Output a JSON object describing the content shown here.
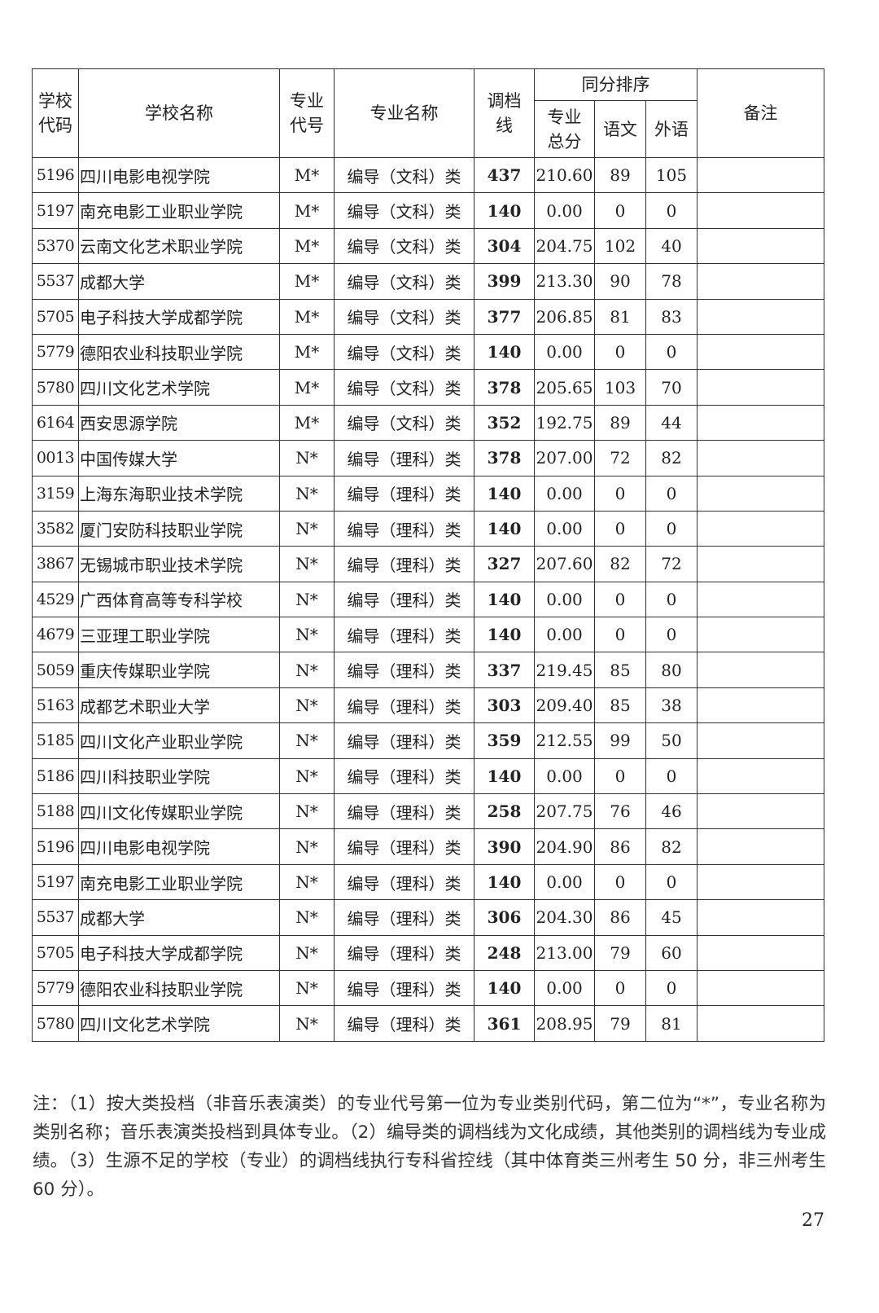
{
  "table": {
    "headers": {
      "school_code": "学校代码",
      "school_name": "学校名称",
      "major_code": "专业代号",
      "major_name": "专业名称",
      "line": "调档线",
      "tie_group": "同分排序",
      "major_total": "专业总分",
      "chinese": "语文",
      "foreign": "外语",
      "remarks": "备注"
    },
    "rows": [
      [
        "5196",
        "四川电影电视学院",
        "M*",
        "编导（文科）类",
        "437",
        "210.60",
        "89",
        "105",
        ""
      ],
      [
        "5197",
        "南充电影工业职业学院",
        "M*",
        "编导（文科）类",
        "140",
        "0.00",
        "0",
        "0",
        ""
      ],
      [
        "5370",
        "云南文化艺术职业学院",
        "M*",
        "编导（文科）类",
        "304",
        "204.75",
        "102",
        "40",
        ""
      ],
      [
        "5537",
        "成都大学",
        "M*",
        "编导（文科）类",
        "399",
        "213.30",
        "90",
        "78",
        ""
      ],
      [
        "5705",
        "电子科技大学成都学院",
        "M*",
        "编导（文科）类",
        "377",
        "206.85",
        "81",
        "83",
        ""
      ],
      [
        "5779",
        "德阳农业科技职业学院",
        "M*",
        "编导（文科）类",
        "140",
        "0.00",
        "0",
        "0",
        ""
      ],
      [
        "5780",
        "四川文化艺术学院",
        "M*",
        "编导（文科）类",
        "378",
        "205.65",
        "103",
        "70",
        ""
      ],
      [
        "6164",
        "西安思源学院",
        "M*",
        "编导（文科）类",
        "352",
        "192.75",
        "89",
        "44",
        ""
      ],
      [
        "0013",
        "中国传媒大学",
        "N*",
        "编导（理科）类",
        "378",
        "207.00",
        "72",
        "82",
        ""
      ],
      [
        "3159",
        "上海东海职业技术学院",
        "N*",
        "编导（理科）类",
        "140",
        "0.00",
        "0",
        "0",
        ""
      ],
      [
        "3582",
        "厦门安防科技职业学院",
        "N*",
        "编导（理科）类",
        "140",
        "0.00",
        "0",
        "0",
        ""
      ],
      [
        "3867",
        "无锡城市职业技术学院",
        "N*",
        "编导（理科）类",
        "327",
        "207.60",
        "82",
        "72",
        ""
      ],
      [
        "4529",
        "广西体育高等专科学校",
        "N*",
        "编导（理科）类",
        "140",
        "0.00",
        "0",
        "0",
        ""
      ],
      [
        "4679",
        "三亚理工职业学院",
        "N*",
        "编导（理科）类",
        "140",
        "0.00",
        "0",
        "0",
        ""
      ],
      [
        "5059",
        "重庆传媒职业学院",
        "N*",
        "编导（理科）类",
        "337",
        "219.45",
        "85",
        "80",
        ""
      ],
      [
        "5163",
        "成都艺术职业大学",
        "N*",
        "编导（理科）类",
        "303",
        "209.40",
        "85",
        "38",
        ""
      ],
      [
        "5185",
        "四川文化产业职业学院",
        "N*",
        "编导（理科）类",
        "359",
        "212.55",
        "99",
        "50",
        ""
      ],
      [
        "5186",
        "四川科技职业学院",
        "N*",
        "编导（理科）类",
        "140",
        "0.00",
        "0",
        "0",
        ""
      ],
      [
        "5188",
        "四川文化传媒职业学院",
        "N*",
        "编导（理科）类",
        "258",
        "207.75",
        "76",
        "46",
        ""
      ],
      [
        "5196",
        "四川电影电视学院",
        "N*",
        "编导（理科）类",
        "390",
        "204.90",
        "86",
        "82",
        ""
      ],
      [
        "5197",
        "南充电影工业职业学院",
        "N*",
        "编导（理科）类",
        "140",
        "0.00",
        "0",
        "0",
        ""
      ],
      [
        "5537",
        "成都大学",
        "N*",
        "编导（理科）类",
        "306",
        "204.30",
        "86",
        "45",
        ""
      ],
      [
        "5705",
        "电子科技大学成都学院",
        "N*",
        "编导（理科）类",
        "248",
        "213.00",
        "79",
        "60",
        ""
      ],
      [
        "5779",
        "德阳农业科技职业学院",
        "N*",
        "编导（理科）类",
        "140",
        "0.00",
        "0",
        "0",
        ""
      ],
      [
        "5780",
        "四川文化艺术学院",
        "N*",
        "编导（理科）类",
        "361",
        "208.95",
        "79",
        "81",
        ""
      ]
    ]
  },
  "notes": "注：（1）按大类投档（非音乐表演类）的专业代号第一位为专业类别代码，第二位为“*”，专业名称为类别名称；音乐表演类投档到具体专业。（2）编导类的调档线为文化成绩，其他类别的调档线为专业成绩。（3）生源不足的学校（专业）的调档线执行专科省控线（其中体育类三州考生 50 分，非三州考生 60 分）。",
  "page_number": "27"
}
